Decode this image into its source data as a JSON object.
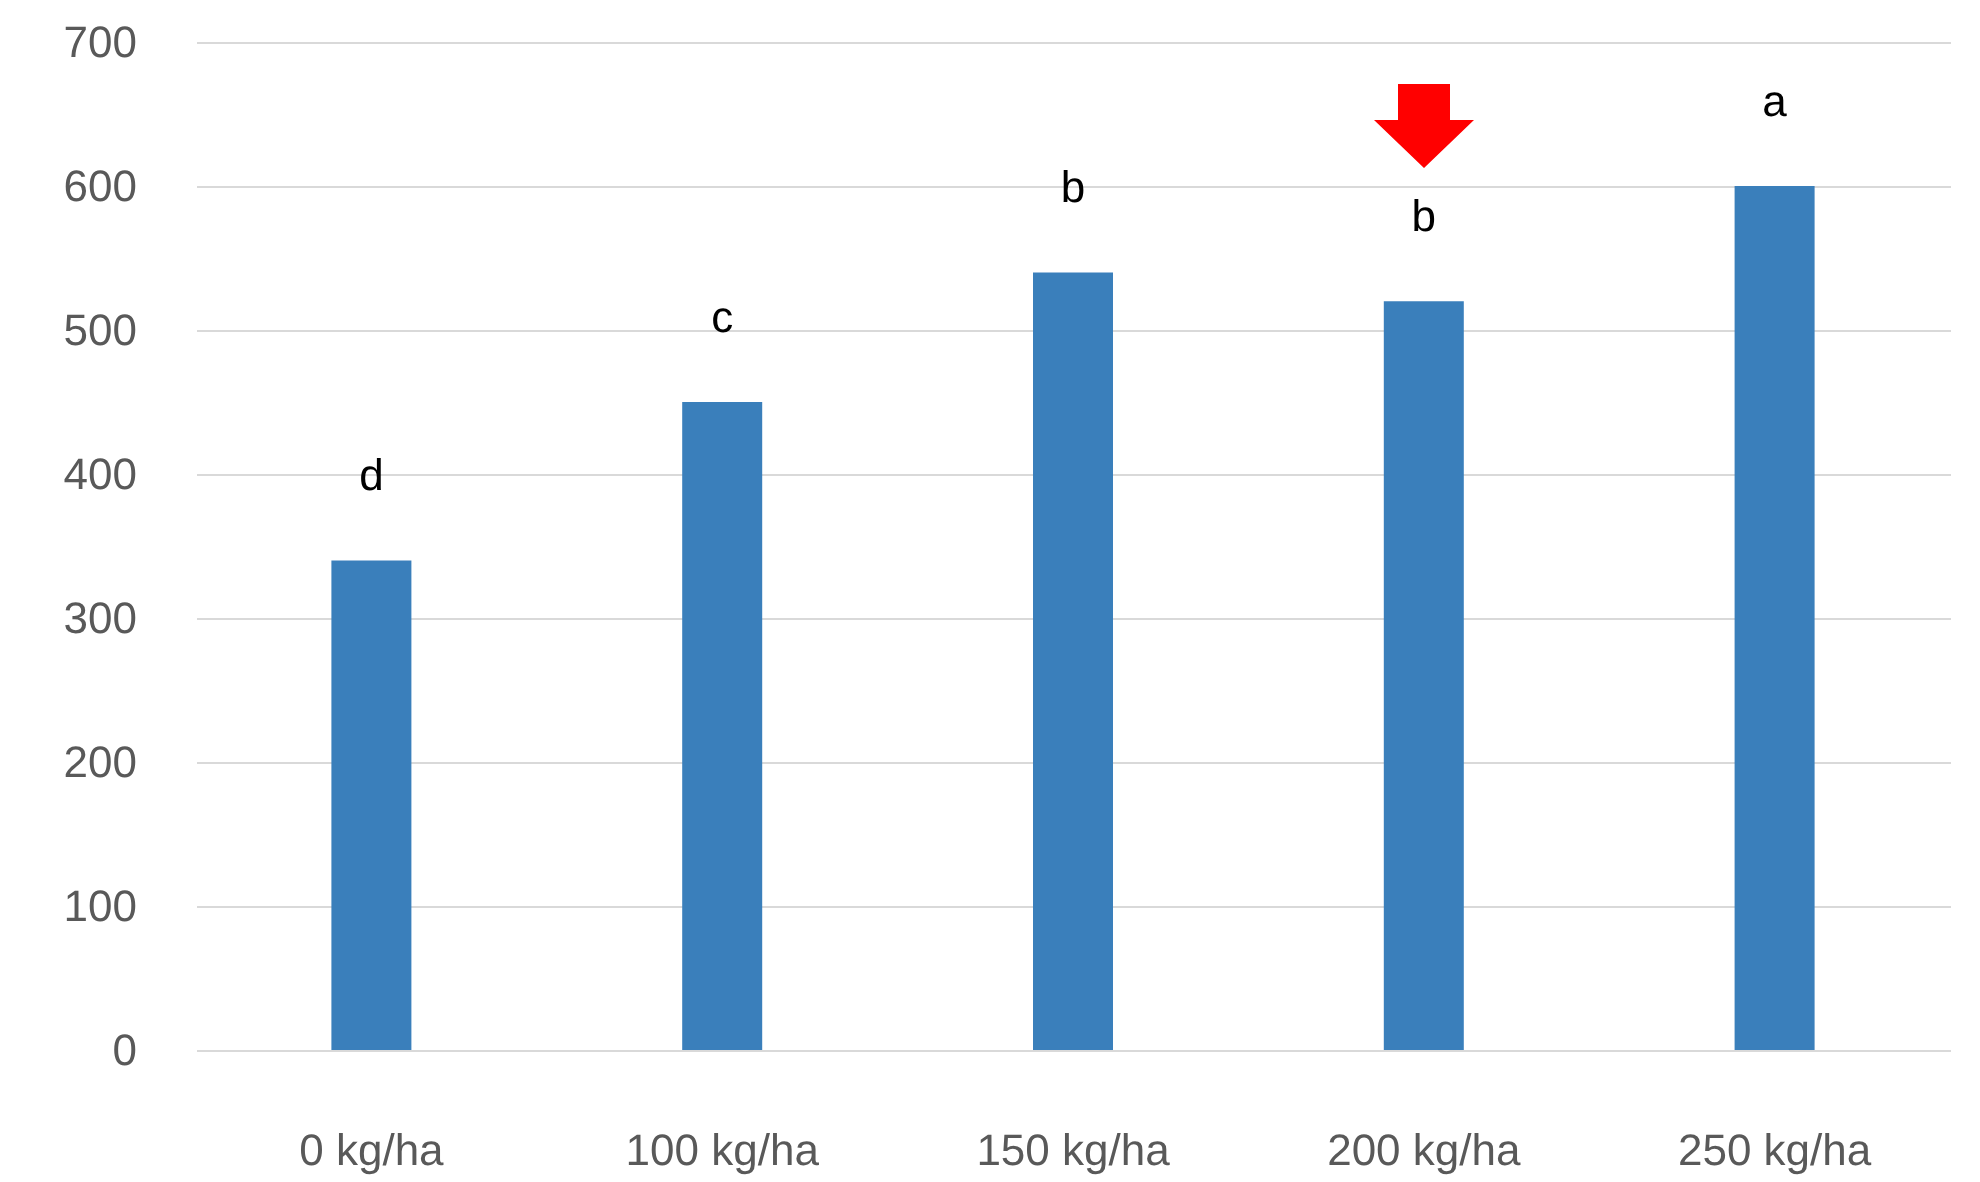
{
  "chart_data": {
    "type": "bar",
    "categories": [
      "0 kg/ha",
      "100 kg/ha",
      "150 kg/ha",
      "200 kg/ha",
      "250 kg/ha"
    ],
    "values": [
      340,
      450,
      540,
      520,
      600
    ],
    "color": "#3a7fbb",
    "ylim": [
      0,
      700
    ],
    "yticks": [
      0,
      100,
      200,
      300,
      400,
      500,
      600,
      700
    ],
    "grid": "y",
    "annotations": [
      "d",
      "c",
      "b",
      "b",
      "a"
    ]
  }
}
